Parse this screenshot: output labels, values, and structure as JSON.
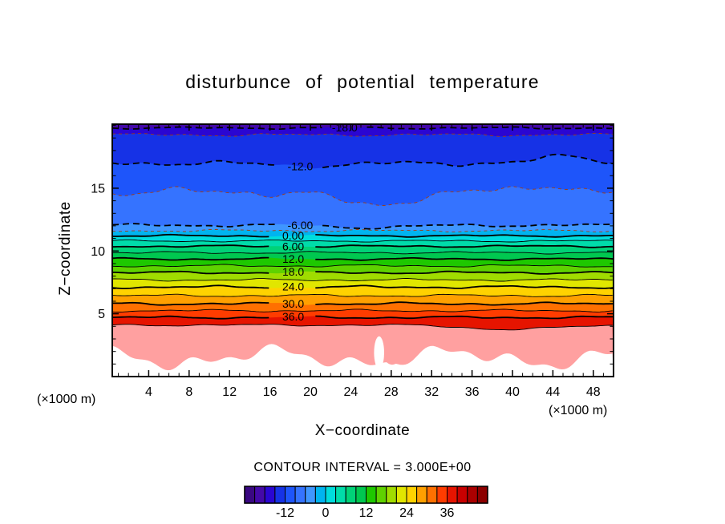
{
  "title": "disturbunce of potential temperature",
  "axes": {
    "x_label": "X−coordinate",
    "y_label": "Z−coordinate",
    "x_unit_left": "(×1000 m)",
    "x_unit_right": "(×1000 m)",
    "x_ticks": [
      4,
      8,
      12,
      16,
      20,
      24,
      28,
      32,
      36,
      40,
      44,
      48
    ],
    "y_ticks": [
      5,
      10,
      15
    ]
  },
  "contour_note": "CONTOUR INTERVAL = 3.000E+00",
  "colorbar": {
    "min": -24,
    "max": 48,
    "step": 3,
    "tick_values": [
      -12,
      0,
      12,
      24,
      36
    ],
    "tick_labels": [
      "-12",
      "0",
      "12",
      "24",
      "36"
    ],
    "colors": [
      "#3a0882",
      "#4409a8",
      "#2a06d2",
      "#1632e6",
      "#1e55fa",
      "#3573ff",
      "#3f96ff",
      "#00b4f0",
      "#00dcdc",
      "#00dcaa",
      "#00d278",
      "#00c850",
      "#1ec800",
      "#5fd200",
      "#a0dc00",
      "#e1e600",
      "#ffd200",
      "#ffa000",
      "#ff7000",
      "#ff3c00",
      "#e61400",
      "#c80000",
      "#aa0000",
      "#8c0000"
    ]
  },
  "chart_data": {
    "type": "heatmap",
    "subtype": "filled-contour-cross-section",
    "title": "disturbunce of potential temperature",
    "xlabel": "X-coordinate (x1000 m)",
    "ylabel": "Z-coordinate (x1000 m)",
    "xlim": [
      0.4,
      50.0
    ],
    "ylim": [
      0,
      20.1
    ],
    "contour_interval": 3.0,
    "surface_color": "#ffa0a0",
    "minor_negative_line_color": "#a03c14",
    "contours": [
      {
        "level": -18,
        "z": 19.8,
        "amp": 0.1,
        "label": "-18.0",
        "label_x": 23.4
      },
      {
        "level": -15,
        "z": 19.25,
        "amp": 0.15
      },
      {
        "level": -12,
        "z": 17.0,
        "amp": 0.25,
        "label": "-12.0",
        "label_x": 19.0,
        "bumps": [
          {
            "x": 45.5,
            "a": 0.55,
            "w": 3.5
          },
          {
            "x": 20,
            "a": -0.2,
            "w": 6
          }
        ]
      },
      {
        "level": -9,
        "z": 14.7,
        "amp": 0.45,
        "bumps": [
          {
            "x": 26,
            "a": -1.1,
            "w": 4.5
          },
          {
            "x": 44,
            "a": 0.6,
            "w": 3
          }
        ]
      },
      {
        "level": -6,
        "z": 12.05,
        "amp": 0.14,
        "label": "-6.00",
        "label_x": 19.0,
        "bumps": [
          {
            "x": 26,
            "a": -0.18,
            "w": 5
          }
        ]
      },
      {
        "level": -3,
        "z": 11.62,
        "amp": 0.12
      },
      {
        "level": 0,
        "z": 11.21,
        "amp": 0.1,
        "label": "0.00",
        "label_x": 18.3
      },
      {
        "level": 3,
        "z": 10.8,
        "amp": 0.1
      },
      {
        "level": 6,
        "z": 10.38,
        "amp": 0.1,
        "label": "6.00",
        "label_x": 18.3
      },
      {
        "level": 9,
        "z": 9.87,
        "amp": 0.11
      },
      {
        "level": 12,
        "z": 9.36,
        "amp": 0.11,
        "label": "12.0",
        "label_x": 18.3
      },
      {
        "level": 15,
        "z": 8.82,
        "amp": 0.12
      },
      {
        "level": 18,
        "z": 8.28,
        "amp": 0.12,
        "label": "18.0",
        "label_x": 18.3
      },
      {
        "level": 21,
        "z": 7.7,
        "amp": 0.12
      },
      {
        "level": 24,
        "z": 7.13,
        "amp": 0.13,
        "label": "24.0",
        "label_x": 18.3
      },
      {
        "level": 27,
        "z": 6.45,
        "amp": 0.13
      },
      {
        "level": 30,
        "z": 5.8,
        "amp": 0.13,
        "label": "30.0",
        "label_x": 18.3
      },
      {
        "level": 33,
        "z": 5.25,
        "amp": 0.12
      },
      {
        "level": 36,
        "z": 4.71,
        "amp": 0.12,
        "label": "36.0",
        "label_x": 18.3
      },
      {
        "level": 39,
        "z": 4.1,
        "amp": 0.1,
        "bumps": [
          {
            "x": 40,
            "a": -0.35,
            "w": 6
          }
        ]
      }
    ],
    "surface_line": {
      "base": 1.5,
      "components": [
        {
          "a": 0.55,
          "k": 0.35,
          "p": 2.2
        },
        {
          "a": 0.35,
          "k": 0.8,
          "p": 0.7
        },
        {
          "a": 0.25,
          "k": 1.6,
          "p": 1.2
        }
      ]
    },
    "features": [
      {
        "type": "white-blob",
        "x": 26.8,
        "z": 1.9,
        "rx": 0.5,
        "rz": 1.3
      },
      {
        "type": "pink-blob",
        "x": 28.1,
        "z": 1.7,
        "rx": 0.8,
        "rz": 0.75
      }
    ]
  }
}
